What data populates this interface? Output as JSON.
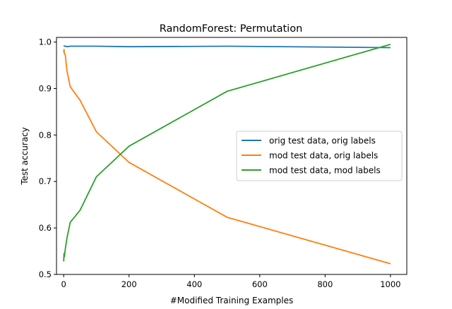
{
  "chart_data": {
    "type": "line",
    "title": "RandomForest: Permutation",
    "xlabel": "#Modified Training Examples",
    "ylabel": "Test accuracy",
    "xlim": [
      -22,
      1050
    ],
    "ylim": [
      0.5,
      1.01
    ],
    "xticks": [
      0,
      200,
      400,
      600,
      800,
      1000
    ],
    "yticks": [
      0.5,
      0.6,
      0.7,
      0.8,
      0.9,
      1.0
    ],
    "xtick_labels": [
      "0",
      "200",
      "400",
      "600",
      "800",
      "1000"
    ],
    "ytick_labels": [
      "0.5",
      "0.6",
      "0.7",
      "0.8",
      "0.9",
      "1.0"
    ],
    "grid": false,
    "legend_position": "center-right",
    "series": [
      {
        "name": "orig test data, orig labels",
        "color": "#1f77b4",
        "x": [
          0,
          1,
          2,
          5,
          10,
          20,
          50,
          100,
          200,
          500,
          1000
        ],
        "y": [
          0.992,
          0.992,
          0.991,
          0.991,
          0.99,
          0.991,
          0.991,
          0.991,
          0.99,
          0.991,
          0.988
        ]
      },
      {
        "name": "mod test data, orig labels",
        "color": "#ff7f0e",
        "x": [
          0,
          1,
          2,
          5,
          10,
          20,
          50,
          100,
          200,
          500,
          1000
        ],
        "y": [
          0.978,
          0.984,
          0.975,
          0.972,
          0.938,
          0.904,
          0.875,
          0.807,
          0.741,
          0.623,
          0.523
        ]
      },
      {
        "name": "mod test data, mod labels",
        "color": "#2ca02c",
        "x": [
          0,
          1,
          2,
          5,
          10,
          20,
          50,
          100,
          200,
          500,
          1000
        ],
        "y": [
          0.528,
          0.545,
          0.538,
          0.555,
          0.578,
          0.612,
          0.638,
          0.71,
          0.776,
          0.894,
          0.995
        ]
      }
    ]
  }
}
